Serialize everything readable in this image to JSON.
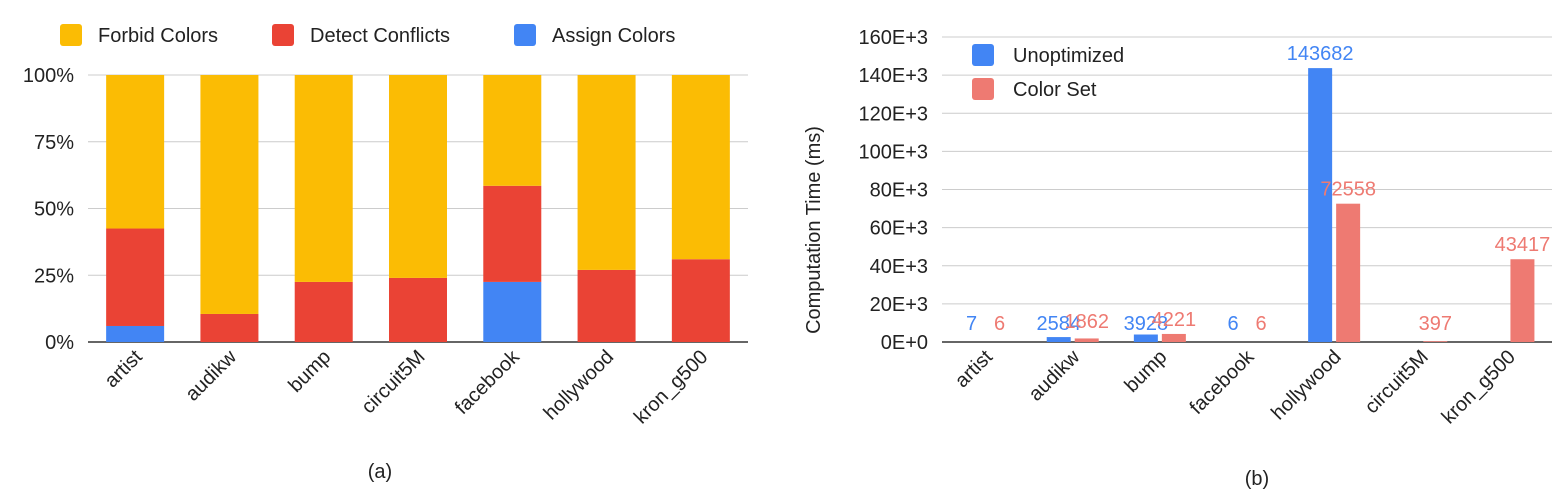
{
  "colors": {
    "forbid": "#FBBC04",
    "detect": "#EA4335",
    "assign": "#4285F4",
    "unoptimized": "#4285F4",
    "color_set": "#EE7A72"
  },
  "chart_data": [
    {
      "type": "bar",
      "stacked": true,
      "normalized": true,
      "caption": "(a)",
      "categories": [
        "artist",
        "audikw",
        "bump",
        "circuit5M",
        "facebook",
        "hollywood",
        "kron_g500"
      ],
      "series": [
        {
          "name": "Assign Colors",
          "values": [
            6,
            0,
            0,
            0,
            22.5,
            0,
            0
          ]
        },
        {
          "name": "Detect Conflicts",
          "values": [
            36.5,
            10.5,
            22.5,
            24,
            36,
            27,
            31
          ]
        },
        {
          "name": "Forbid Colors",
          "values": [
            57.5,
            89.5,
            77.5,
            76,
            41.5,
            73,
            69
          ]
        }
      ],
      "legend_order": [
        "Forbid Colors",
        "Detect Conflicts",
        "Assign Colors"
      ],
      "legend_position": "top",
      "y_ticks": [
        "0%",
        "25%",
        "50%",
        "75%",
        "100%"
      ],
      "ylim": [
        0,
        100
      ],
      "grid": true
    },
    {
      "type": "bar",
      "caption": "(b)",
      "ylabel": "Computation Time (ms)",
      "categories": [
        "artist",
        "audikw",
        "bump",
        "facebook",
        "hollywood",
        "circuit5M",
        "kron_g500"
      ],
      "series": [
        {
          "name": "Unoptimized",
          "values": [
            7,
            2584,
            3928,
            6,
            143682,
            null,
            null
          ],
          "labels": [
            "7",
            "2584",
            "3928",
            "6",
            "143682",
            "",
            ""
          ]
        },
        {
          "name": "Color Set",
          "values": [
            6,
            1862,
            4221,
            6,
            72558,
            397,
            43417
          ],
          "labels": [
            "6",
            "1862",
            "4221",
            "6",
            "72558",
            "397",
            "43417"
          ]
        }
      ],
      "legend_position": "top-left",
      "y_ticks": [
        "0E+0",
        "20E+3",
        "40E+3",
        "60E+3",
        "80E+3",
        "100E+3",
        "120E+3",
        "140E+3",
        "160E+3"
      ],
      "ylim": [
        0,
        160000
      ],
      "grid": true
    }
  ]
}
